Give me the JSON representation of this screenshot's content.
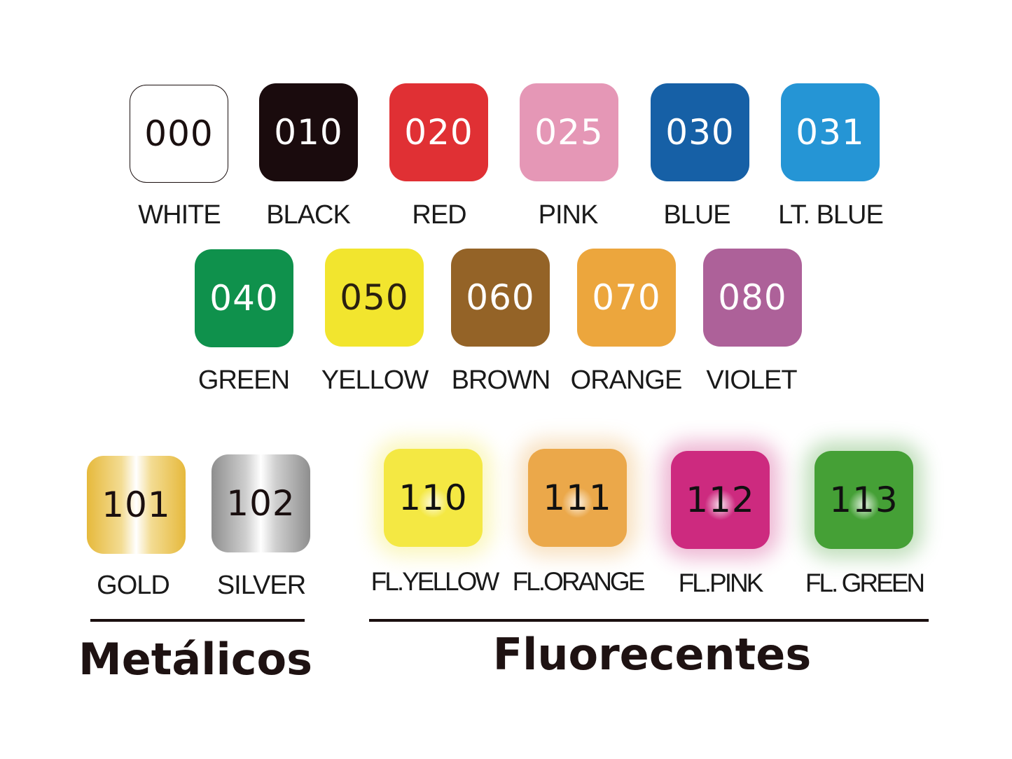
{
  "swatches": [
    {
      "code": "000",
      "name": "WHITE",
      "color": "#ffffff",
      "text": "#1a0f0f",
      "border": "#1a0f0f"
    },
    {
      "code": "010",
      "name": "BLACK",
      "color": "#1a0b0d",
      "text": "#ffffff"
    },
    {
      "code": "020",
      "name": "RED",
      "color": "#e03034",
      "text": "#ffffff"
    },
    {
      "code": "025",
      "name": "PINK",
      "color": "#e597b6",
      "text": "#ffffff"
    },
    {
      "code": "030",
      "name": "BLUE",
      "color": "#1660a6",
      "text": "#ffffff"
    },
    {
      "code": "031",
      "name": "LT. BLUE",
      "color": "#2595d5",
      "text": "#ffffff"
    },
    {
      "code": "040",
      "name": "GREEN",
      "color": "#0f914c",
      "text": "#ffffff"
    },
    {
      "code": "050",
      "name": "YELLOW",
      "color": "#f2e52e",
      "text": "#2a2010"
    },
    {
      "code": "060",
      "name": "BROWN",
      "color": "#946327",
      "text": "#ffffff"
    },
    {
      "code": "070",
      "name": "ORANGE",
      "color": "#eca63d",
      "text": "#ffffff"
    },
    {
      "code": "080",
      "name": "VIOLET",
      "color": "#ad6199",
      "text": "#ffffff"
    },
    {
      "code": "101",
      "name": "GOLD",
      "color": "#e6b93c",
      "text": "#1a0f0f"
    },
    {
      "code": "102",
      "name": "SILVER",
      "color": "#9a9a9a",
      "text": "#1a0f0f"
    },
    {
      "code": "110",
      "name": "FL.YELLOW",
      "color": "#f4e843",
      "text": "#111111"
    },
    {
      "code": "111",
      "name": "FL.ORANGE",
      "color": "#eba84a",
      "text": "#111111"
    },
    {
      "code": "112",
      "name": "FL.PINK",
      "color": "#cd2a7f",
      "text": "#111111"
    },
    {
      "code": "113",
      "name": "FL. GREEN",
      "color": "#45a036",
      "text": "#111111"
    }
  ],
  "groups": {
    "metallic": "Metálicos",
    "fluorescent": "Fluorecentes"
  }
}
